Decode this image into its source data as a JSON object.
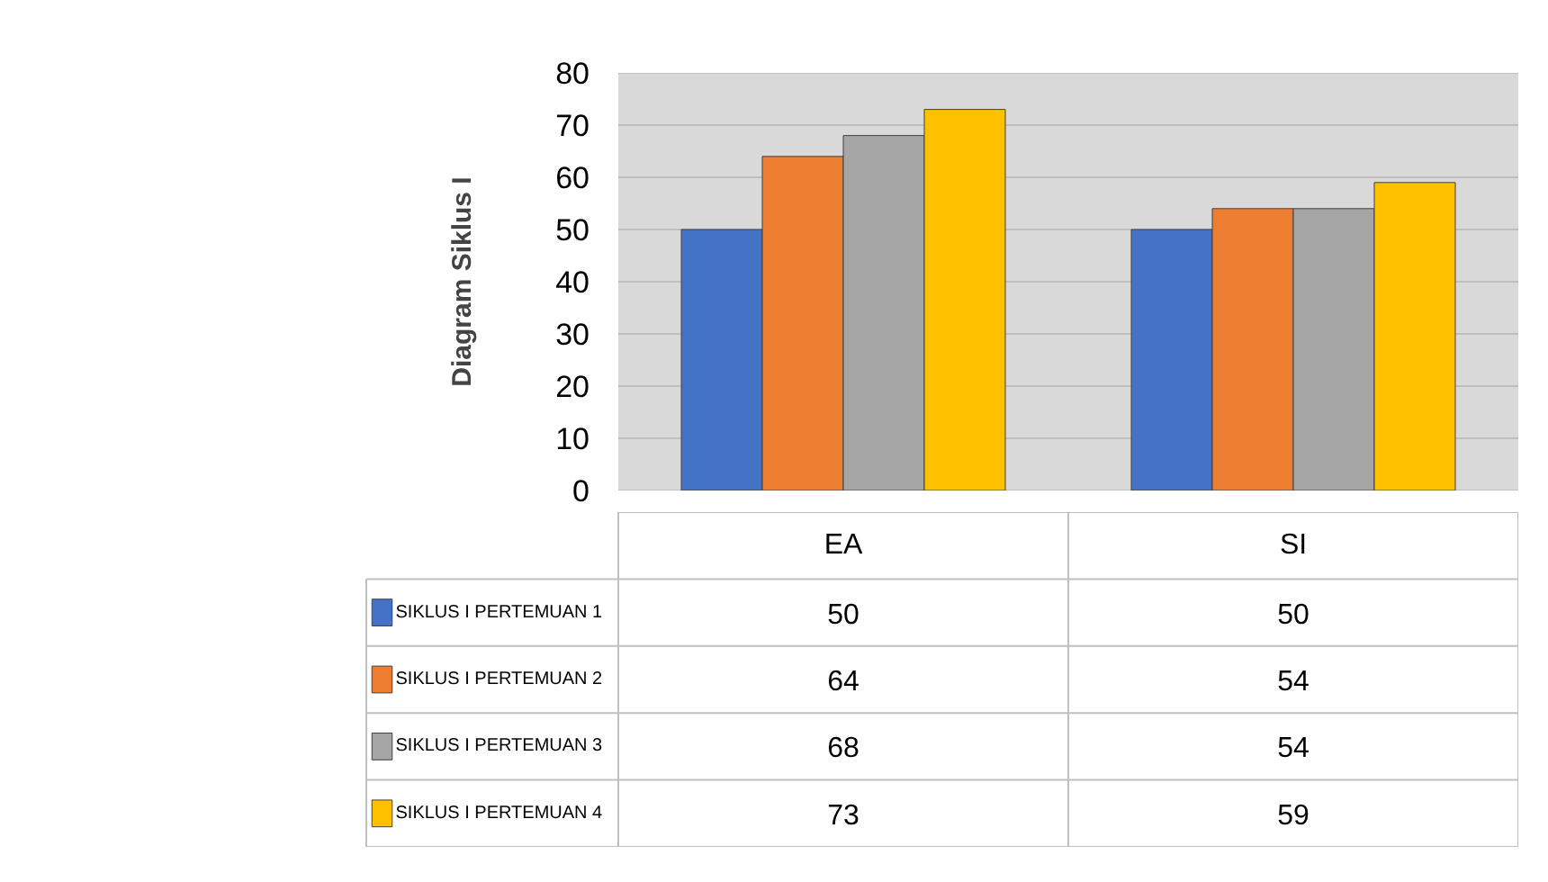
{
  "chart_data": {
    "type": "bar",
    "ylabel": "Diagram Siklus I",
    "categories": [
      "EA",
      "SI"
    ],
    "series": [
      {
        "name": "SIKLUS I PERTEMUAN 1",
        "color": "#4472c4",
        "values": [
          50,
          50
        ]
      },
      {
        "name": "SIKLUS I PERTEMUAN 2",
        "color": "#ed7d31",
        "values": [
          64,
          54
        ]
      },
      {
        "name": "SIKLUS I PERTEMUAN 3",
        "color": "#a5a5a5",
        "values": [
          68,
          54
        ]
      },
      {
        "name": "SIKLUS I PERTEMUAN 4",
        "color": "#ffc000",
        "values": [
          73,
          59
        ]
      }
    ],
    "ylim": [
      0,
      80
    ],
    "yticks": [
      0,
      10,
      20,
      30,
      40,
      50,
      60,
      70,
      80
    ],
    "grid": "y",
    "legend": "bottom",
    "data_labels": true
  }
}
